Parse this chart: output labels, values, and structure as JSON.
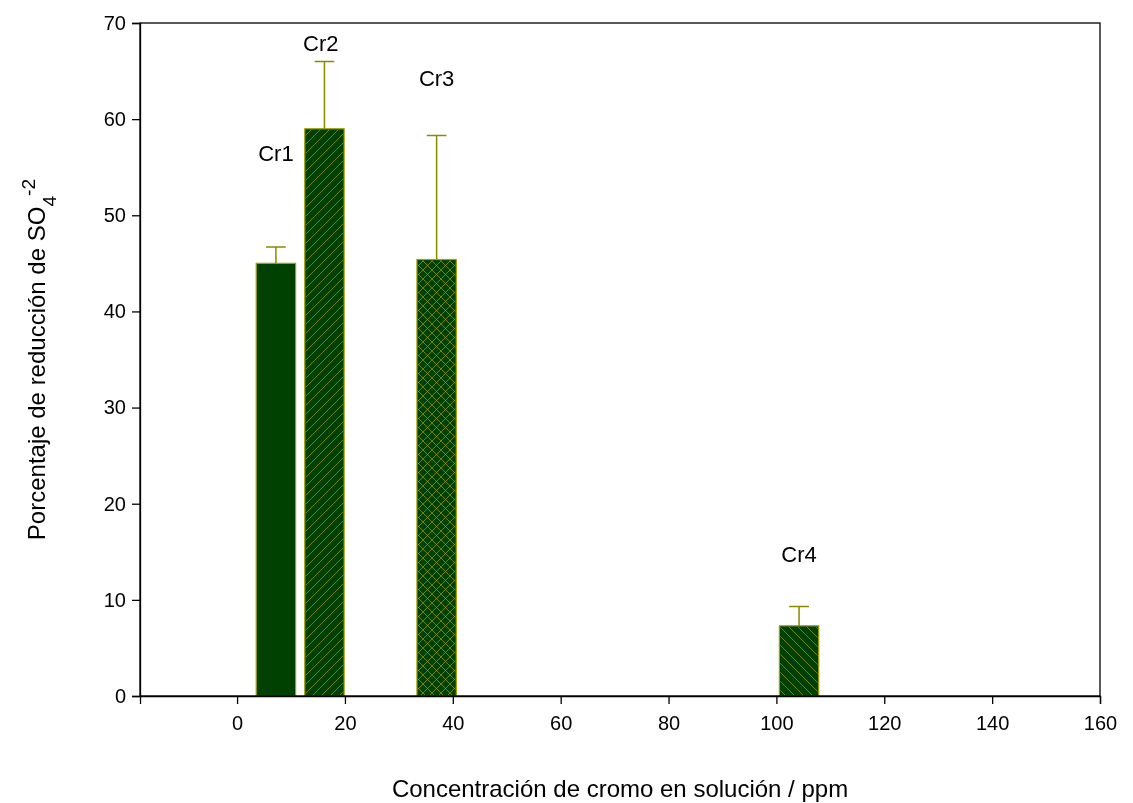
{
  "chart_data": {
    "type": "bar",
    "xlabel": "Concentración de cromo en solución / ppm",
    "ylabel": "Porcentaje de reducción de SO$_{4}$$^{-2}$",
    "x": [
      7.2,
      16.2,
      37,
      104.2
    ],
    "values": [
      45,
      59,
      45.4,
      7.3
    ],
    "errors": [
      [
        45,
        46.7
      ],
      [
        59,
        66
      ],
      [
        45.4,
        58.3
      ],
      [
        7.3,
        9.3
      ]
    ],
    "colors": [
      "#004000",
      "#004000",
      "#004000",
      "#004000"
    ],
    "xlim": [
      -18,
      160
    ],
    "xticks": [
      0,
      20,
      40,
      60,
      80,
      100,
      120,
      140,
      160
    ],
    "ylim": [
      0,
      70
    ],
    "yticks": [
      0,
      10,
      20,
      30,
      40,
      50,
      60,
      70
    ],
    "grid": false,
    "annotations": [
      "Cr1",
      "Cr2",
      "Cr3",
      "Cr4"
    ]
  }
}
